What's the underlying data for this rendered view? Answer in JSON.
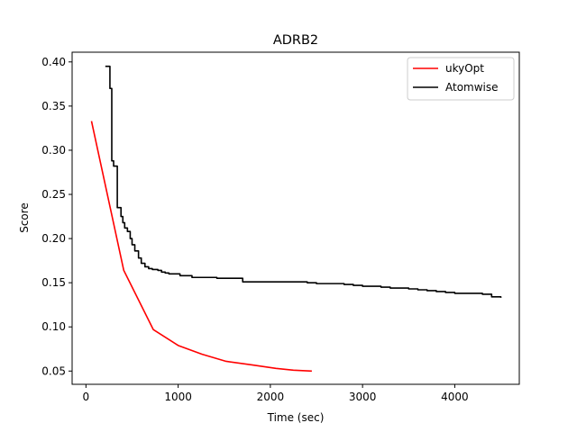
{
  "chart_data": {
    "type": "line",
    "title": "ADRB2",
    "xlabel": "Time (sec)",
    "ylabel": "Score",
    "xlim": [
      -150,
      4700
    ],
    "ylim": [
      0.035,
      0.411
    ],
    "xticks": [
      0,
      1000,
      2000,
      3000,
      4000
    ],
    "xtick_labels": [
      "0",
      "1000",
      "2000",
      "3000",
      "4000"
    ],
    "yticks": [
      0.05,
      0.1,
      0.15,
      0.2,
      0.25,
      0.3,
      0.35,
      0.4
    ],
    "ytick_labels": [
      "0.05",
      "0.10",
      "0.15",
      "0.20",
      "0.25",
      "0.30",
      "0.35",
      "0.40"
    ],
    "grid": false,
    "legend_position": "top-right",
    "series": [
      {
        "name": "ukyOpt",
        "color": "#ff0000",
        "step": false,
        "x": [
          60,
          410,
          730,
          1000,
          1260,
          1520,
          1800,
          2060,
          2250,
          2450
        ],
        "y": [
          0.333,
          0.164,
          0.097,
          0.079,
          0.069,
          0.061,
          0.057,
          0.053,
          0.051,
          0.05
        ]
      },
      {
        "name": "Atomwise",
        "color": "#000000",
        "step": true,
        "x": [
          210,
          260,
          280,
          300,
          340,
          380,
          400,
          420,
          450,
          480,
          500,
          530,
          570,
          600,
          640,
          680,
          720,
          780,
          820,
          860,
          900,
          1020,
          1150,
          1420,
          1700,
          2000,
          2300,
          2400,
          2500,
          2800,
          2900,
          3000,
          3200,
          3300,
          3500,
          3600,
          3700,
          3800,
          3900,
          4000,
          4100,
          4300,
          4400,
          4500
        ],
        "y": [
          0.395,
          0.37,
          0.288,
          0.282,
          0.235,
          0.225,
          0.218,
          0.212,
          0.208,
          0.2,
          0.193,
          0.186,
          0.178,
          0.172,
          0.168,
          0.166,
          0.165,
          0.164,
          0.162,
          0.161,
          0.16,
          0.158,
          0.156,
          0.155,
          0.151,
          0.151,
          0.151,
          0.15,
          0.149,
          0.148,
          0.147,
          0.146,
          0.145,
          0.144,
          0.143,
          0.142,
          0.141,
          0.14,
          0.139,
          0.138,
          0.138,
          0.137,
          0.134,
          0.133
        ]
      }
    ]
  }
}
